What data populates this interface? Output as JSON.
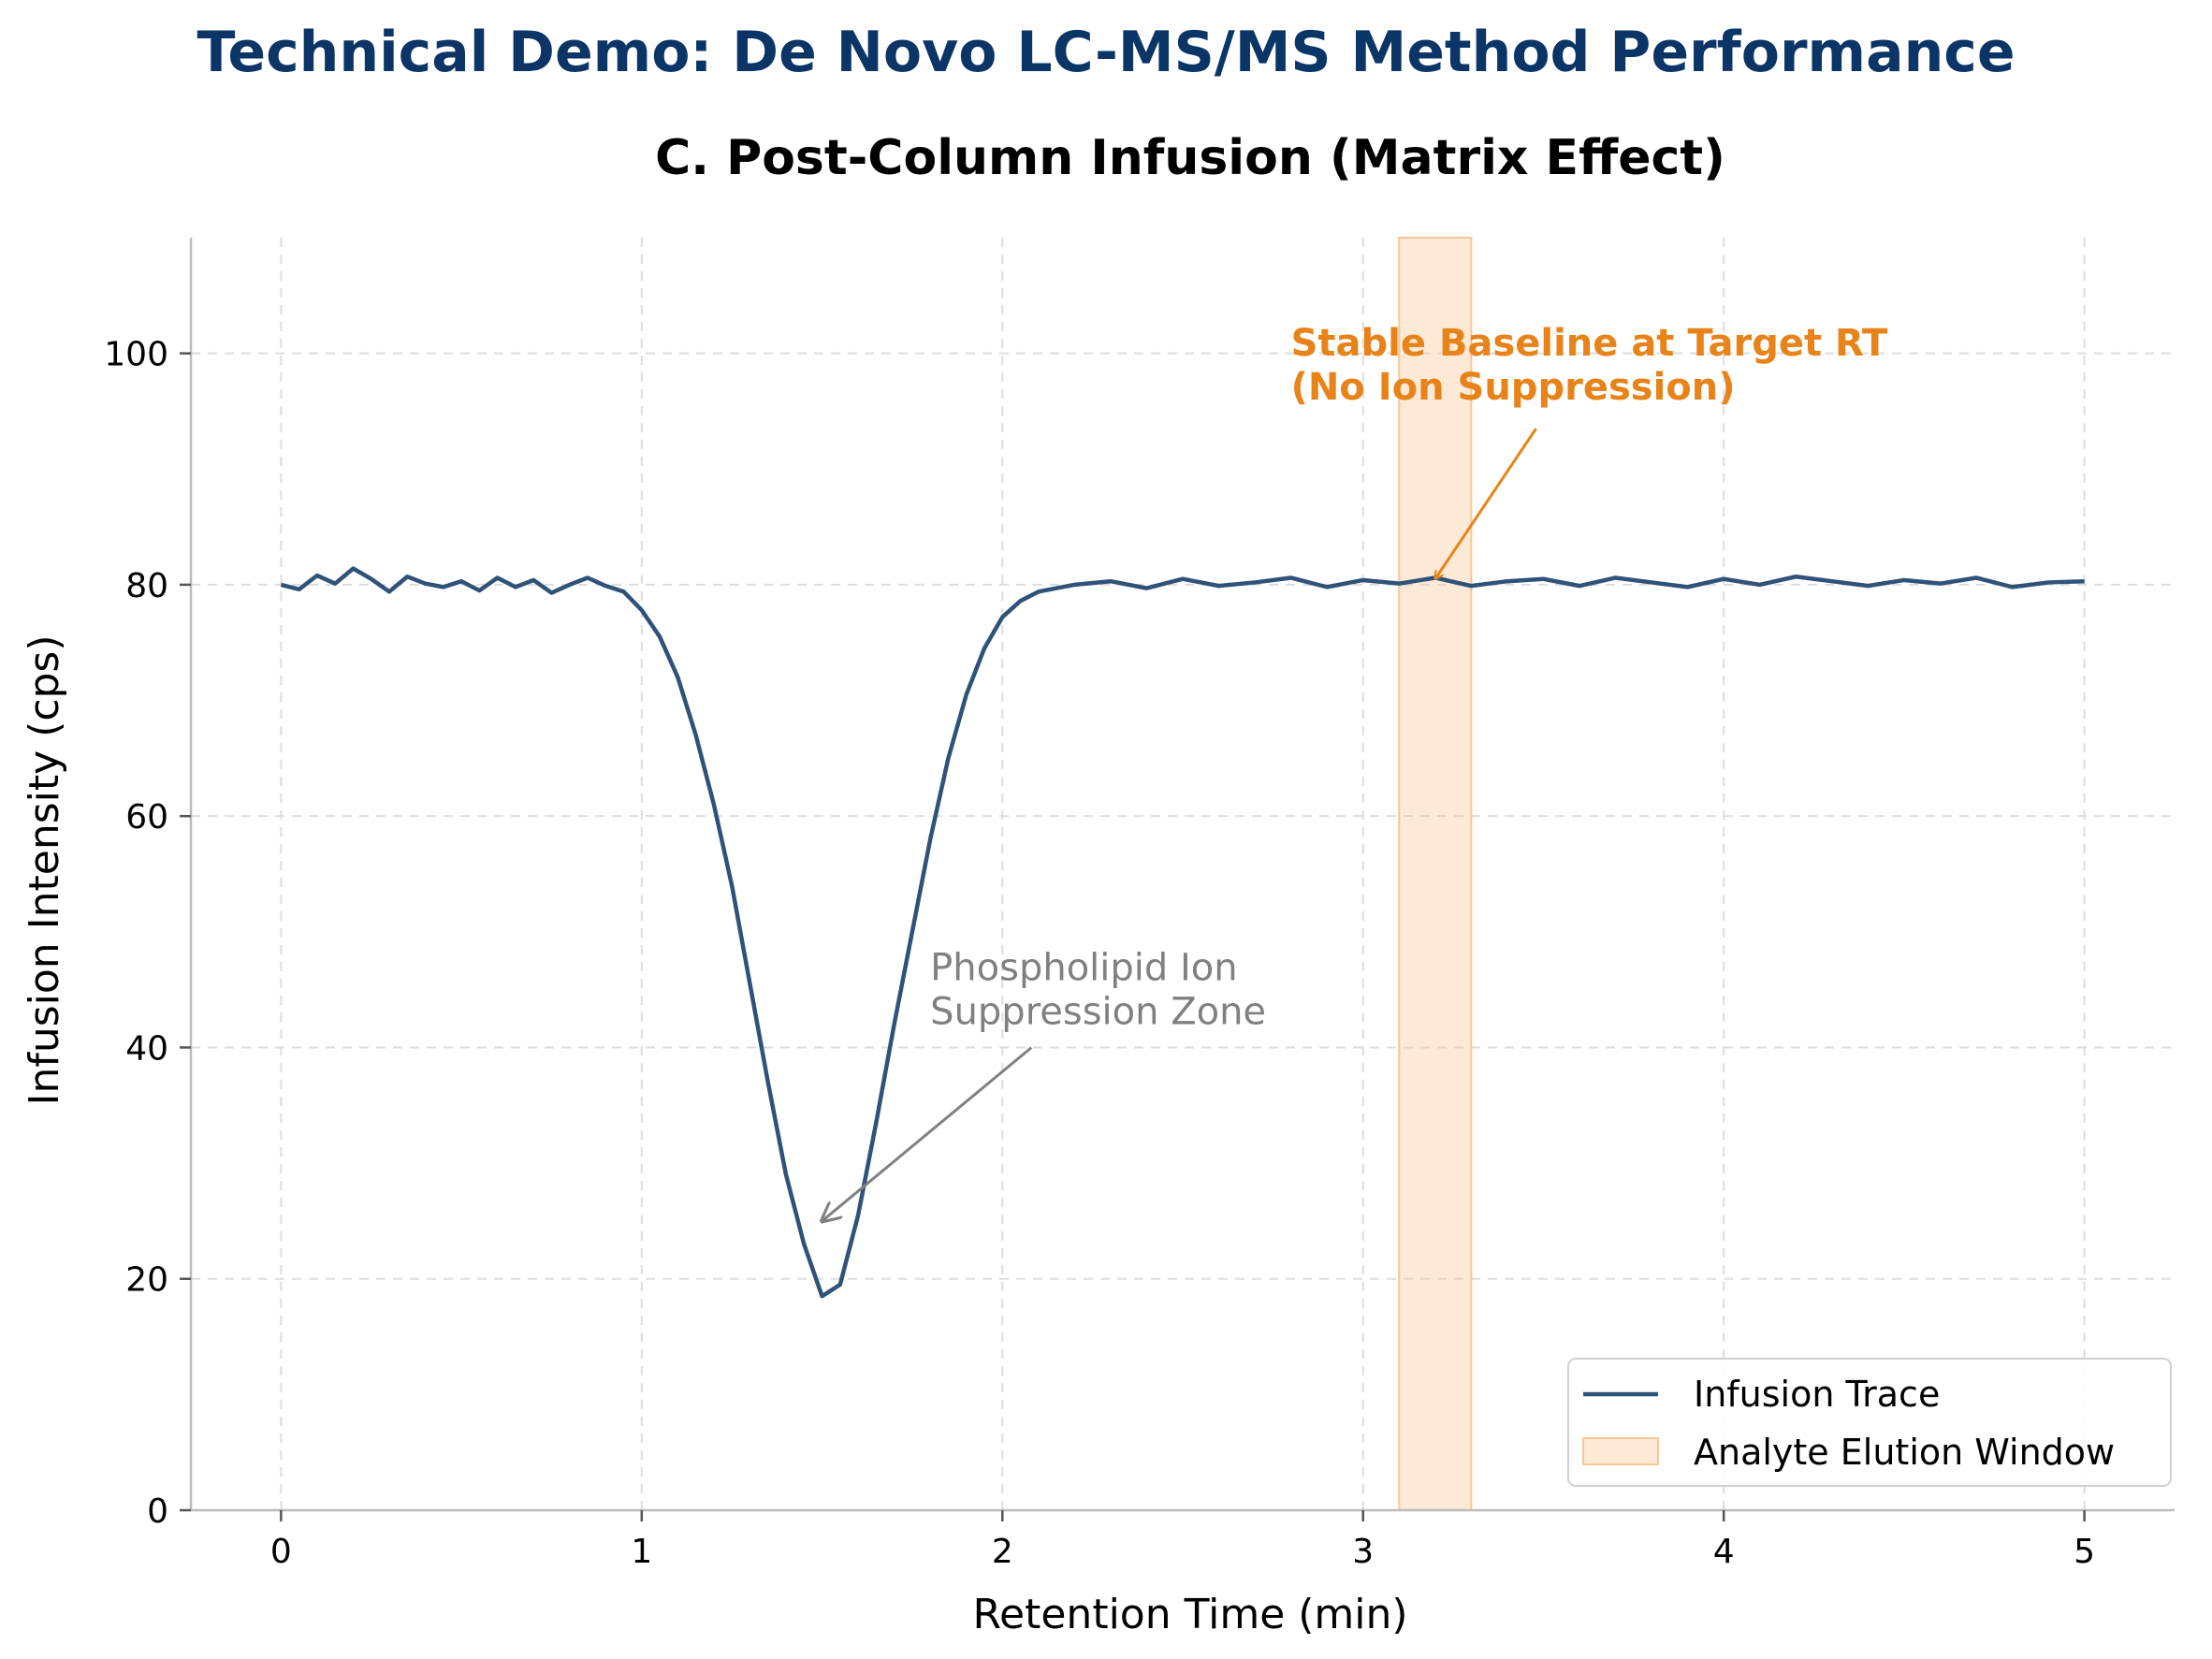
{
  "figure": {
    "suptitle": "Technical Demo: De Novo LC-MS/MS Method Performance",
    "suptitle_color": "#0b3566"
  },
  "chart_data": {
    "type": "line",
    "title": "C. Post-Column Infusion (Matrix Effect)",
    "xlabel": "Retention Time (min)",
    "ylabel": "Infusion Intensity (cps)",
    "xlim": [
      -0.25,
      5.25
    ],
    "ylim": [
      0,
      110
    ],
    "xticks": [
      0,
      1,
      2,
      3,
      4,
      5
    ],
    "yticks": [
      0,
      20,
      40,
      60,
      80,
      100
    ],
    "xtick_labels": [
      "0",
      "1",
      "2",
      "3",
      "4",
      "5"
    ],
    "ytick_labels": [
      "0",
      "20",
      "40",
      "60",
      "80",
      "100"
    ],
    "grid": true,
    "legend_position": "lower-right",
    "series": [
      {
        "name": "Infusion Trace",
        "color": "#2f5279",
        "x": [
          0.0,
          0.05,
          0.1,
          0.15,
          0.2,
          0.25,
          0.3,
          0.35,
          0.4,
          0.45,
          0.5,
          0.55,
          0.6,
          0.65,
          0.7,
          0.75,
          0.8,
          0.85,
          0.9,
          0.95,
          1.0,
          1.05,
          1.1,
          1.15,
          1.2,
          1.25,
          1.3,
          1.35,
          1.4,
          1.45,
          1.5,
          1.55,
          1.6,
          1.65,
          1.7,
          1.75,
          1.8,
          1.85,
          1.9,
          1.95,
          2.0,
          2.05,
          2.1,
          2.2,
          2.3,
          2.4,
          2.5,
          2.6,
          2.7,
          2.8,
          2.9,
          3.0,
          3.1,
          3.2,
          3.3,
          3.4,
          3.5,
          3.6,
          3.7,
          3.8,
          3.9,
          4.0,
          4.1,
          4.2,
          4.3,
          4.4,
          4.5,
          4.6,
          4.7,
          4.8,
          4.9,
          5.0
        ],
        "y": [
          80.0,
          79.6,
          80.8,
          80.1,
          81.4,
          80.5,
          79.4,
          80.7,
          80.1,
          79.8,
          80.3,
          79.5,
          80.6,
          79.8,
          80.4,
          79.3,
          80.0,
          80.6,
          79.9,
          79.4,
          77.8,
          75.5,
          72.0,
          67.0,
          61.0,
          54.0,
          45.5,
          37.0,
          29.0,
          23.0,
          18.5,
          19.5,
          25.5,
          33.5,
          42.0,
          50.0,
          58.0,
          65.0,
          70.5,
          74.5,
          77.2,
          78.6,
          79.4,
          80.0,
          80.3,
          79.7,
          80.5,
          79.9,
          80.2,
          80.6,
          79.8,
          80.4,
          80.1,
          80.6,
          79.9,
          80.3,
          80.5,
          79.9,
          80.6,
          80.2,
          79.8,
          80.5,
          80.0,
          80.7,
          80.3,
          79.9,
          80.4,
          80.1,
          80.6,
          79.8,
          80.2,
          80.3
        ]
      }
    ],
    "shaded_region": {
      "name": "Analyte Elution Window",
      "x_range": [
        3.1,
        3.3
      ],
      "color": "#f7c28b"
    },
    "annotations": [
      {
        "text_line1": "Stable Baseline at Target RT",
        "text_line2": "(No Ion Suppression)",
        "text_x": 2.8,
        "text_y": 99,
        "arrow_to": [
          3.2,
          80.5
        ],
        "color": "#e8831a"
      },
      {
        "text_line1": "Phospholipid Ion",
        "text_line2": "Suppression Zone",
        "text_x": 1.8,
        "text_y": 45,
        "arrow_to": [
          1.5,
          25
        ],
        "color": "#808080"
      }
    ]
  }
}
